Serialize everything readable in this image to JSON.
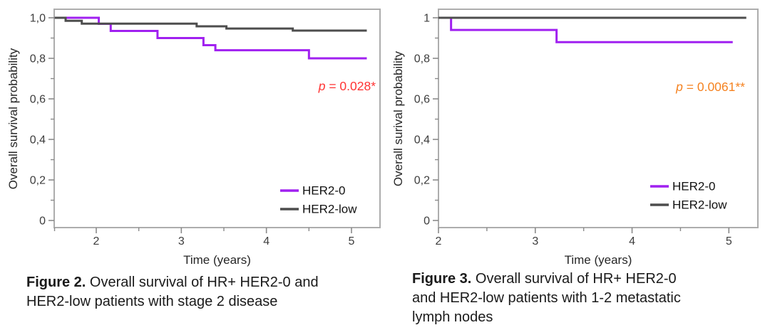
{
  "page": {
    "background": "#ffffff"
  },
  "colors": {
    "her2_0": "#A020F0",
    "her2_low": "#4D4D4D",
    "p_value_fig2": "#FF3333",
    "p_value_fig3": "#F58220",
    "plot_border": "#ADADAD",
    "tick": "#8A8A8A",
    "text": "#1A1A1A"
  },
  "chart_data": [
    {
      "type": "line",
      "subtype": "kaplan-meier-step",
      "figure_label": "Figure 2.",
      "caption_text": " Overall survival of HR+ HER2-0 and\nHER2-low patients with stage 2 disease",
      "xlabel": "Time (years)",
      "ylabel": "Overall survival probability",
      "xlim": [
        1.5,
        5.33
      ],
      "ylim": [
        0,
        1.04
      ],
      "grid": false,
      "legend_position": "bottom-right",
      "x_ticks": {
        "major": [
          {
            "value": 2,
            "label": "2"
          },
          {
            "value": 3,
            "label": "3"
          },
          {
            "value": 4,
            "label": "4"
          },
          {
            "value": 5,
            "label": "5"
          }
        ],
        "minor": [
          1.51,
          2.5,
          3.5,
          4.5
        ]
      },
      "y_ticks": {
        "major": [
          {
            "value": 1.0,
            "label": "1,0"
          },
          {
            "value": 0.8,
            "label": "0,8"
          },
          {
            "value": 0.6,
            "label": "0,6"
          },
          {
            "value": 0.4,
            "label": "0,4"
          },
          {
            "value": 0.2,
            "label": "0,2"
          },
          {
            "value": 0.0,
            "label": "0"
          }
        ],
        "minor": [
          0.9,
          0.7,
          0.5,
          0.3,
          0.1
        ]
      },
      "series": [
        {
          "name": "HER2-0",
          "color": "#A020F0",
          "points": [
            [
              1.51,
              1.0
            ],
            [
              2.03,
              0.97
            ],
            [
              2.17,
              0.935
            ],
            [
              2.72,
              0.9
            ],
            [
              3.26,
              0.865
            ],
            [
              3.4,
              0.84
            ],
            [
              4.5,
              0.8
            ],
            [
              5.18,
              0.8
            ]
          ]
        },
        {
          "name": "HER2-low",
          "color": "#4D4D4D",
          "points": [
            [
              1.51,
              1.0
            ],
            [
              1.64,
              0.985
            ],
            [
              1.83,
              0.971
            ],
            [
              3.18,
              0.958
            ],
            [
              3.53,
              0.947
            ],
            [
              4.31,
              0.937
            ],
            [
              5.18,
              0.937
            ]
          ]
        }
      ],
      "annotation": {
        "prefix_italic": "p",
        "text": " = 0.028*",
        "color": "#FF3333"
      }
    },
    {
      "type": "line",
      "subtype": "kaplan-meier-step",
      "figure_label": "Figure 3.",
      "caption_text": " Overall survival of HR+ HER2-0\nand HER2-low patients with 1-2 metastatic\nlymph nodes",
      "xlabel": "Time (years)",
      "ylabel": "Overall surival probability",
      "xlim": [
        2.0,
        5.3
      ],
      "ylim": [
        0,
        1.04
      ],
      "grid": false,
      "legend_position": "bottom-right",
      "x_ticks": {
        "major": [
          {
            "value": 2,
            "label": "2"
          },
          {
            "value": 3,
            "label": "3"
          },
          {
            "value": 4,
            "label": "4"
          },
          {
            "value": 5,
            "label": "5"
          }
        ],
        "minor": [
          2.5,
          3.5,
          4.5
        ]
      },
      "y_ticks": {
        "major": [
          {
            "value": 1.0,
            "label": "1"
          },
          {
            "value": 0.8,
            "label": "0,8"
          },
          {
            "value": 0.6,
            "label": "0,6"
          },
          {
            "value": 0.4,
            "label": "0,4"
          },
          {
            "value": 0.2,
            "label": "0,2"
          },
          {
            "value": 0.0,
            "label": "0"
          }
        ],
        "minor": [
          0.9,
          0.7,
          0.5,
          0.3,
          0.1
        ]
      },
      "series": [
        {
          "name": "HER2-0",
          "color": "#A020F0",
          "points": [
            [
              2.0,
              1.0
            ],
            [
              2.13,
              0.94
            ],
            [
              3.22,
              0.88
            ],
            [
              5.04,
              0.88
            ]
          ]
        },
        {
          "name": "HER2-low",
          "color": "#4D4D4D",
          "points": [
            [
              2.0,
              1.0
            ],
            [
              5.18,
              1.0
            ]
          ]
        }
      ],
      "annotation": {
        "prefix_italic": "p",
        "text": " = 0.0061**",
        "color": "#F58220"
      }
    }
  ]
}
